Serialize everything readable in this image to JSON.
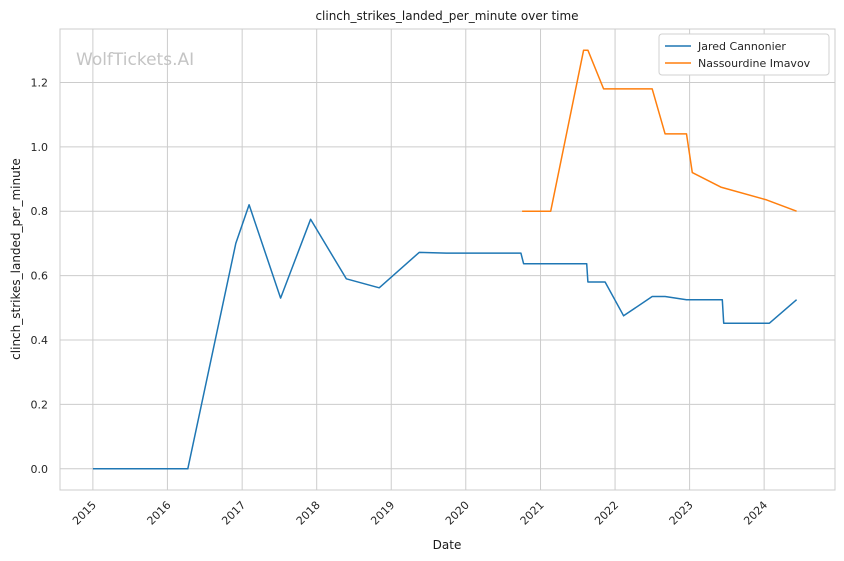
{
  "watermark": "WolfTickets.AI",
  "chart_data": {
    "type": "line",
    "title": "clinch_strikes_landed_per_minute over time",
    "xlabel": "Date",
    "ylabel": "clinch_strikes_landed_per_minute",
    "x_ticks": [
      "2015",
      "2016",
      "2017",
      "2018",
      "2019",
      "2020",
      "2021",
      "2022",
      "2023",
      "2024"
    ],
    "y_ticks": [
      "0.0",
      "0.2",
      "0.4",
      "0.6",
      "0.8",
      "1.0",
      "1.2"
    ],
    "xlim": [
      "2014-07-24",
      "2024-12-13"
    ],
    "ylim": [
      -0.066,
      1.366
    ],
    "grid": true,
    "legend_position": "top-right",
    "series": [
      {
        "name": "Jared Cannonier",
        "color": "#1f77b4",
        "points": [
          [
            "2015-01-01",
            0.0
          ],
          [
            "2016-04-10",
            0.0
          ],
          [
            "2016-12-01",
            0.7
          ],
          [
            "2017-02-04",
            0.82
          ],
          [
            "2017-07-08",
            0.53
          ],
          [
            "2017-12-02",
            0.775
          ],
          [
            "2018-05-26",
            0.59
          ],
          [
            "2018-11-03",
            0.562
          ],
          [
            "2019-05-18",
            0.672
          ],
          [
            "2019-09-28",
            0.67
          ],
          [
            "2020-09-27",
            0.67
          ],
          [
            "2020-10-10",
            0.637
          ],
          [
            "2021-08-15",
            0.637
          ],
          [
            "2021-08-21",
            0.58
          ],
          [
            "2021-11-13",
            0.58
          ],
          [
            "2022-02-12",
            0.475
          ],
          [
            "2022-07-02",
            0.535
          ],
          [
            "2022-09-03",
            0.535
          ],
          [
            "2022-12-17",
            0.525
          ],
          [
            "2023-06-10",
            0.525
          ],
          [
            "2023-06-17",
            0.452
          ],
          [
            "2024-01-27",
            0.452
          ],
          [
            "2024-06-08",
            0.525
          ]
        ]
      },
      {
        "name": "Nassourdine Imavov",
        "color": "#ff7f0e",
        "points": [
          [
            "2020-10-03",
            0.8
          ],
          [
            "2021-02-20",
            0.8
          ],
          [
            "2021-07-31",
            1.3
          ],
          [
            "2021-08-21",
            1.3
          ],
          [
            "2021-11-06",
            1.18
          ],
          [
            "2022-07-02",
            1.18
          ],
          [
            "2022-09-03",
            1.04
          ],
          [
            "2022-12-17",
            1.04
          ],
          [
            "2023-01-14",
            0.92
          ],
          [
            "2023-06-03",
            0.875
          ],
          [
            "2024-01-13",
            0.835
          ],
          [
            "2024-06-08",
            0.8
          ]
        ]
      }
    ]
  }
}
